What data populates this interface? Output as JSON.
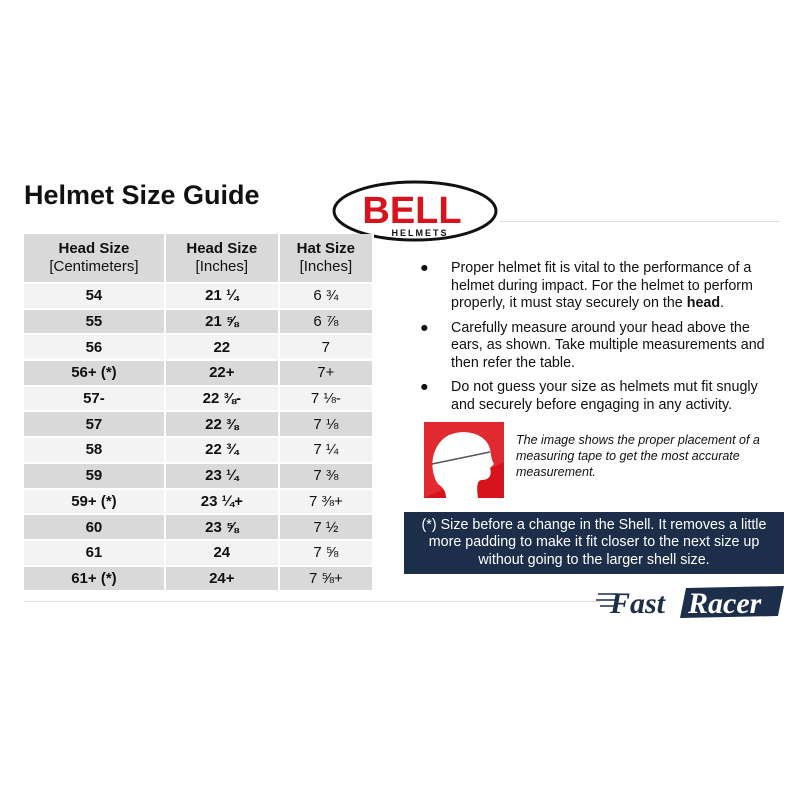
{
  "title": "Helmet Size Guide",
  "logo": {
    "brand": "BELL",
    "sub": "HELMETS",
    "color": "#d7141d"
  },
  "table": {
    "headers": [
      {
        "main": "Head Size",
        "sub": "[Centimeters]"
      },
      {
        "main": "Head Size",
        "sub": "[Inches]"
      },
      {
        "main": "Hat Size",
        "sub": "[Inches]"
      }
    ],
    "rows": [
      [
        "54",
        "21 ¼",
        "6 ¾"
      ],
      [
        "55",
        "21 ⅝",
        "6 ⅞"
      ],
      [
        "56",
        "22",
        "7"
      ],
      [
        "56+ (*)",
        "22+",
        "7+"
      ],
      [
        "57-",
        "22 ⅜-",
        "7 ⅛-"
      ],
      [
        "57",
        "22 ⅜",
        "7 ⅛"
      ],
      [
        "58",
        "22 ¾",
        "7 ¼"
      ],
      [
        "59",
        "23 ¼",
        "7 ⅜"
      ],
      [
        "59+ (*)",
        "23 ¼+",
        "7 ⅜+"
      ],
      [
        "60",
        "23 ⅝",
        "7 ½"
      ],
      [
        "61",
        "24",
        "7 ⅝"
      ],
      [
        "61+ (*)",
        "24+",
        "7 ⅝+"
      ]
    ]
  },
  "bullets": [
    {
      "text": "Proper helmet fit is vital to the performance of a helmet during impact. For the helmet to perform properly, it must stay securely on the ",
      "bold": "head",
      "after": "."
    },
    {
      "text": "Carefully measure around your head above the ears, as shown. Take multiple measurements and then refer the table.",
      "bold": "",
      "after": ""
    },
    {
      "text": "Do not guess your size as helmets mut fit snugly and securely before engaging in any activity.",
      "bold": "",
      "after": ""
    }
  ],
  "caption": "The image shows the proper placement of a measuring tape to get the most accurate measurement.",
  "note": "(*) Size before a change in the Shell. It removes a little more padding to make it fit closer to the next size up without going to the larger shell size.",
  "footer_logo": "FastRacer",
  "colors": {
    "navy": "#1c2e4a",
    "red": "#d7141d"
  }
}
